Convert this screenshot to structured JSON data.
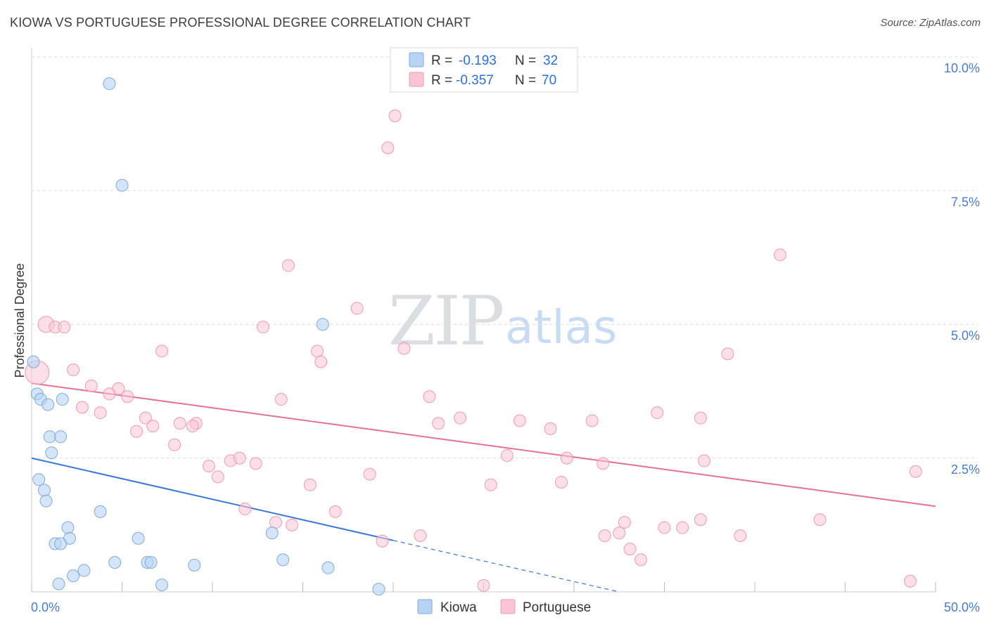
{
  "header": {
    "title": "KIOWA VS PORTUGUESE PROFESSIONAL DEGREE CORRELATION CHART",
    "source": "Source: ZipAtlas.com"
  },
  "colors": {
    "kiowa_fill": "#b8d3f3",
    "kiowa_stroke": "#7fa9e0",
    "kiowa_line": "#3a78d4",
    "portuguese_fill": "#f9c5d4",
    "portuguese_stroke": "#ee9ab3",
    "portuguese_line": "#e3719b",
    "grid": "#dddddd",
    "axis_text": "#4a7cc9"
  },
  "legend": {
    "kiowa": {
      "r_label": "R =",
      "r_value": "-0.193",
      "n_label": "N =",
      "n_value": "32"
    },
    "portuguese": {
      "r_label": "R =",
      "r_value": "-0.357",
      "n_label": "N =",
      "n_value": "70"
    }
  },
  "watermark": {
    "zip": "ZIP",
    "atlas": "atlas"
  },
  "chart_data": {
    "type": "scatter",
    "title": "KIOWA VS PORTUGUESE PROFESSIONAL DEGREE CORRELATION CHART",
    "xlabel": "",
    "ylabel": "Professional Degree",
    "xlim": [
      0,
      50
    ],
    "ylim": [
      0,
      10.5
    ],
    "x_tick_labels": [
      "0.0%",
      "50.0%"
    ],
    "y_ticks": [
      2.5,
      5.0,
      7.5,
      10.0
    ],
    "y_tick_labels": [
      "2.5%",
      "5.0%",
      "7.5%",
      "10.0%"
    ],
    "legend_position": "top-center",
    "series": [
      {
        "name": "Kiowa",
        "r": -0.193,
        "n": 32,
        "trend": {
          "x0": 0,
          "y0": 2.5,
          "x_solid_end": 20,
          "x1": 32.5,
          "y1": 0.0
        },
        "points": [
          {
            "x": 4.3,
            "y": 9.5,
            "s": 1
          },
          {
            "x": 5.0,
            "y": 7.6,
            "s": 1
          },
          {
            "x": 0.1,
            "y": 4.3,
            "s": 1
          },
          {
            "x": 16.1,
            "y": 5.0,
            "s": 1
          },
          {
            "x": 0.3,
            "y": 3.7,
            "s": 1
          },
          {
            "x": 0.5,
            "y": 3.6,
            "s": 1
          },
          {
            "x": 0.9,
            "y": 3.5,
            "s": 1
          },
          {
            "x": 1.7,
            "y": 3.6,
            "s": 1
          },
          {
            "x": 1.0,
            "y": 2.9,
            "s": 1
          },
          {
            "x": 1.6,
            "y": 2.9,
            "s": 1
          },
          {
            "x": 1.1,
            "y": 2.6,
            "s": 1
          },
          {
            "x": 0.4,
            "y": 2.1,
            "s": 1
          },
          {
            "x": 0.7,
            "y": 1.9,
            "s": 1
          },
          {
            "x": 0.8,
            "y": 1.7,
            "s": 1
          },
          {
            "x": 3.8,
            "y": 1.5,
            "s": 1
          },
          {
            "x": 2.0,
            "y": 1.2,
            "s": 1
          },
          {
            "x": 2.1,
            "y": 1.0,
            "s": 1
          },
          {
            "x": 1.3,
            "y": 0.9,
            "s": 1
          },
          {
            "x": 1.6,
            "y": 0.9,
            "s": 1
          },
          {
            "x": 5.9,
            "y": 1.0,
            "s": 1
          },
          {
            "x": 13.3,
            "y": 1.1,
            "s": 1
          },
          {
            "x": 13.9,
            "y": 0.6,
            "s": 1
          },
          {
            "x": 4.6,
            "y": 0.55,
            "s": 1
          },
          {
            "x": 6.4,
            "y": 0.55,
            "s": 1
          },
          {
            "x": 6.6,
            "y": 0.55,
            "s": 1
          },
          {
            "x": 9.0,
            "y": 0.5,
            "s": 1
          },
          {
            "x": 16.4,
            "y": 0.45,
            "s": 1
          },
          {
            "x": 2.9,
            "y": 0.4,
            "s": 1
          },
          {
            "x": 2.3,
            "y": 0.3,
            "s": 1
          },
          {
            "x": 1.5,
            "y": 0.15,
            "s": 1
          },
          {
            "x": 7.2,
            "y": 0.13,
            "s": 1
          },
          {
            "x": 19.2,
            "y": 0.05,
            "s": 1
          }
        ]
      },
      {
        "name": "Portuguese",
        "r": -0.357,
        "n": 70,
        "trend": {
          "x0": 0,
          "y0": 3.9,
          "x1": 50,
          "y1": 1.6
        },
        "points": [
          {
            "x": 20.1,
            "y": 8.9,
            "s": 1
          },
          {
            "x": 19.7,
            "y": 8.3,
            "s": 1
          },
          {
            "x": 41.4,
            "y": 6.3,
            "s": 1
          },
          {
            "x": 14.2,
            "y": 6.1,
            "s": 1
          },
          {
            "x": 18.0,
            "y": 5.3,
            "s": 1
          },
          {
            "x": 0.8,
            "y": 5.0,
            "s": 1.35
          },
          {
            "x": 1.3,
            "y": 4.95,
            "s": 1
          },
          {
            "x": 1.8,
            "y": 4.95,
            "s": 1
          },
          {
            "x": 12.8,
            "y": 4.95,
            "s": 1
          },
          {
            "x": 7.2,
            "y": 4.5,
            "s": 1
          },
          {
            "x": 15.8,
            "y": 4.5,
            "s": 1
          },
          {
            "x": 20.6,
            "y": 4.55,
            "s": 1
          },
          {
            "x": 38.5,
            "y": 4.45,
            "s": 1
          },
          {
            "x": 16.0,
            "y": 4.3,
            "s": 1
          },
          {
            "x": 0.3,
            "y": 4.1,
            "s": 2.0
          },
          {
            "x": 2.3,
            "y": 4.15,
            "s": 1
          },
          {
            "x": 3.3,
            "y": 3.85,
            "s": 1
          },
          {
            "x": 4.8,
            "y": 3.8,
            "s": 1
          },
          {
            "x": 4.3,
            "y": 3.7,
            "s": 1
          },
          {
            "x": 5.3,
            "y": 3.65,
            "s": 1
          },
          {
            "x": 22.0,
            "y": 3.65,
            "s": 1
          },
          {
            "x": 13.8,
            "y": 3.6,
            "s": 1
          },
          {
            "x": 2.8,
            "y": 3.45,
            "s": 1
          },
          {
            "x": 3.8,
            "y": 3.35,
            "s": 1
          },
          {
            "x": 6.3,
            "y": 3.25,
            "s": 1
          },
          {
            "x": 34.6,
            "y": 3.35,
            "s": 1
          },
          {
            "x": 37.0,
            "y": 3.25,
            "s": 1
          },
          {
            "x": 23.7,
            "y": 3.25,
            "s": 1
          },
          {
            "x": 27.0,
            "y": 3.2,
            "s": 1
          },
          {
            "x": 31.0,
            "y": 3.2,
            "s": 1
          },
          {
            "x": 8.2,
            "y": 3.15,
            "s": 1
          },
          {
            "x": 9.1,
            "y": 3.15,
            "s": 1
          },
          {
            "x": 22.5,
            "y": 3.15,
            "s": 1
          },
          {
            "x": 6.7,
            "y": 3.1,
            "s": 1
          },
          {
            "x": 8.9,
            "y": 3.1,
            "s": 1
          },
          {
            "x": 28.7,
            "y": 3.05,
            "s": 1
          },
          {
            "x": 5.8,
            "y": 3.0,
            "s": 1
          },
          {
            "x": 7.9,
            "y": 2.75,
            "s": 1
          },
          {
            "x": 26.3,
            "y": 2.55,
            "s": 1
          },
          {
            "x": 29.6,
            "y": 2.5,
            "s": 1
          },
          {
            "x": 11.0,
            "y": 2.45,
            "s": 1
          },
          {
            "x": 11.5,
            "y": 2.5,
            "s": 1
          },
          {
            "x": 12.4,
            "y": 2.4,
            "s": 1
          },
          {
            "x": 31.6,
            "y": 2.4,
            "s": 1
          },
          {
            "x": 37.2,
            "y": 2.45,
            "s": 1
          },
          {
            "x": 9.8,
            "y": 2.35,
            "s": 1
          },
          {
            "x": 48.9,
            "y": 2.25,
            "s": 1
          },
          {
            "x": 18.7,
            "y": 2.2,
            "s": 1
          },
          {
            "x": 10.3,
            "y": 2.15,
            "s": 1
          },
          {
            "x": 15.4,
            "y": 2.0,
            "s": 1
          },
          {
            "x": 25.4,
            "y": 2.0,
            "s": 1
          },
          {
            "x": 29.3,
            "y": 2.05,
            "s": 1
          },
          {
            "x": 11.8,
            "y": 1.55,
            "s": 1
          },
          {
            "x": 16.8,
            "y": 1.5,
            "s": 1
          },
          {
            "x": 13.5,
            "y": 1.3,
            "s": 1
          },
          {
            "x": 14.4,
            "y": 1.25,
            "s": 1
          },
          {
            "x": 37.0,
            "y": 1.35,
            "s": 1
          },
          {
            "x": 43.6,
            "y": 1.35,
            "s": 1
          },
          {
            "x": 32.8,
            "y": 1.3,
            "s": 1
          },
          {
            "x": 35.0,
            "y": 1.2,
            "s": 1
          },
          {
            "x": 36.0,
            "y": 1.2,
            "s": 1
          },
          {
            "x": 32.5,
            "y": 1.1,
            "s": 1
          },
          {
            "x": 31.7,
            "y": 1.05,
            "s": 1
          },
          {
            "x": 39.2,
            "y": 1.05,
            "s": 1
          },
          {
            "x": 21.5,
            "y": 1.05,
            "s": 1
          },
          {
            "x": 19.4,
            "y": 0.95,
            "s": 1
          },
          {
            "x": 33.1,
            "y": 0.8,
            "s": 1
          },
          {
            "x": 33.7,
            "y": 0.6,
            "s": 1
          },
          {
            "x": 48.6,
            "y": 0.2,
            "s": 1
          },
          {
            "x": 25.0,
            "y": 0.12,
            "s": 1
          }
        ]
      }
    ]
  }
}
